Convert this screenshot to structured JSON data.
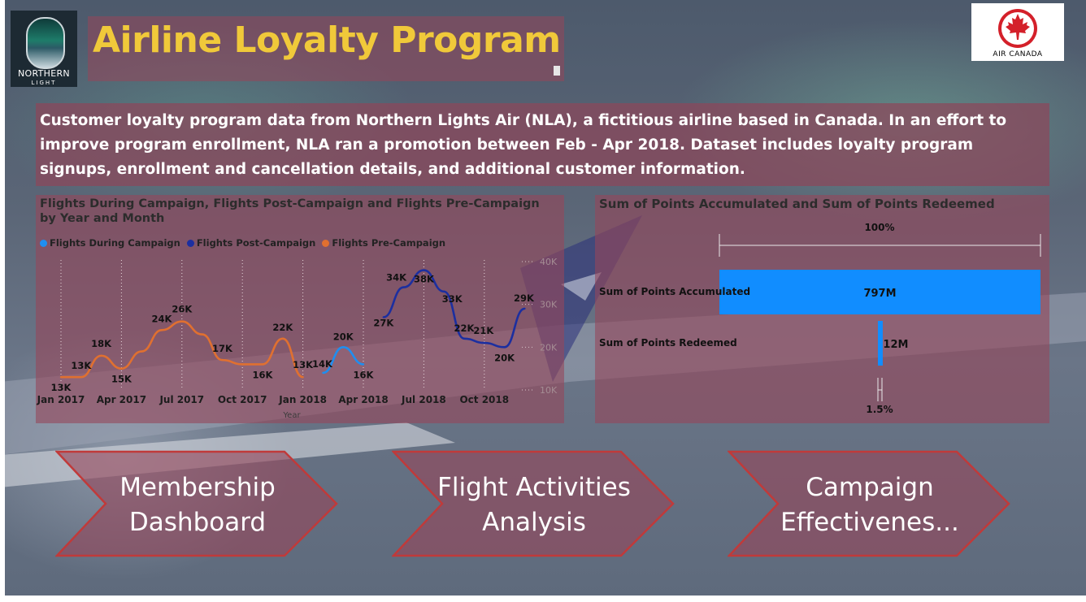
{
  "header": {
    "title": "Airline Loyalty Program",
    "logo_left": {
      "line1": "NORTHERN",
      "line2": "LIGHT",
      "icon": "northern-light-logo"
    },
    "logo_right": {
      "text": "AIR CANADA",
      "icon": "maple-leaf-icon",
      "color": "#d4202a"
    }
  },
  "description": "Customer loyalty program data from Northern Lights Air (NLA), a fictitious airline based in Canada. In an effort to improve program enrollment, NLA ran a promotion between Feb - Apr 2018. Dataset includes loyalty program signups, enrollment and cancellation details, and additional customer information.",
  "colors": {
    "during": "#1f8ef0",
    "post": "#1c2fa0",
    "pre": "#e07030",
    "panel": "#96465a",
    "title_yellow": "#f0c93a",
    "bar_blue": "#118dff"
  },
  "chart_data": [
    {
      "type": "line",
      "title": "Flights During Campaign, Flights Post-Campaign and Flights Pre-Campaign by Year and Month",
      "xlabel": "Year",
      "ylabel": "",
      "x_tick_labels": [
        "Jan 2017",
        "Apr 2017",
        "Jul 2017",
        "Oct 2017",
        "Jan 2018",
        "Apr 2018",
        "Jul 2018",
        "Oct 2018"
      ],
      "y_tick_labels": [
        "40K",
        "30K",
        "20K",
        "10K"
      ],
      "ylim": [
        10000,
        40000
      ],
      "legend_position": "top-left",
      "series": [
        {
          "name": "Flights During Campaign",
          "x": [
            "2018-02",
            "2018-03",
            "2018-04"
          ],
          "values": [
            14000,
            20000,
            16000
          ],
          "labels": [
            "14K",
            "20K",
            "16K"
          ]
        },
        {
          "name": "Flights Post-Campaign",
          "x": [
            "2018-05",
            "2018-06",
            "2018-07",
            "2018-08",
            "2018-09",
            "2018-10",
            "2018-11",
            "2018-12"
          ],
          "values": [
            27000,
            34000,
            38000,
            33000,
            22000,
            21000,
            20000,
            29000
          ],
          "labels": [
            "27K",
            "34K",
            "38K",
            "33K",
            "22K",
            "21K",
            "20K",
            "29K"
          ]
        },
        {
          "name": "Flights Pre-Campaign",
          "x": [
            "2017-01",
            "2017-02",
            "2017-03",
            "2017-04",
            "2017-05",
            "2017-06",
            "2017-07",
            "2017-08",
            "2017-09",
            "2017-10",
            "2017-11",
            "2017-12",
            "2018-01"
          ],
          "values": [
            13000,
            13000,
            18000,
            15000,
            19000,
            24000,
            26000,
            23000,
            17000,
            16000,
            16000,
            22000,
            13000
          ],
          "labels": [
            "13K",
            "13K",
            "18K",
            "15K",
            "",
            "24K",
            "26K",
            "",
            "17K",
            "",
            "16K",
            "22K",
            "13K"
          ]
        }
      ]
    },
    {
      "type": "bar",
      "title": "Sum of Points Accumulated and Sum of Points Redeemed",
      "categories": [
        "Sum of Points Accumulated",
        "Sum of Points Redeemed"
      ],
      "values": [
        797000000,
        12000000
      ],
      "value_labels": [
        "797M",
        "12M"
      ],
      "top_label": "100%",
      "bottom_label": "1.5%"
    }
  ],
  "nav": [
    {
      "line1": "Membership",
      "line2": "Dashboard"
    },
    {
      "line1": "Flight Activities",
      "line2": "Analysis"
    },
    {
      "line1": "Campaign",
      "line2": "Effectivenes..."
    }
  ]
}
